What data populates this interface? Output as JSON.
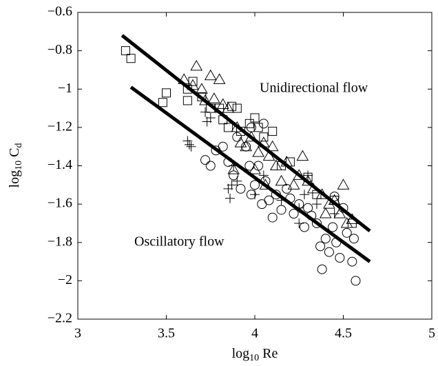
{
  "chart_data": {
    "type": "scatter",
    "x_label": {
      "base": "log",
      "sub": "10",
      "rest": "Re"
    },
    "y_label": {
      "base": "log",
      "sub": "10",
      "rest": "C",
      "rest_sub": "d"
    },
    "annotations": [
      "Unidirectional flow",
      "Oscillatory flow"
    ],
    "xlim": [
      3,
      5
    ],
    "ylim": [
      -2.2,
      -0.6
    ],
    "xticks": [
      3,
      3.5,
      4,
      4.5,
      5
    ],
    "yticks": [
      {
        "value": -0.6,
        "label": "−0.6"
      },
      {
        "value": -0.8,
        "label": "−0.8"
      },
      {
        "value": -1,
        "label": "−1"
      },
      {
        "value": -1.2,
        "label": "−1.2"
      },
      {
        "value": -1.4,
        "label": "−1.4"
      },
      {
        "value": -1.6,
        "label": "−1.6"
      },
      {
        "value": -1.8,
        "label": "−1.8"
      },
      {
        "value": -2,
        "label": "−2"
      },
      {
        "value": -2.2,
        "label": "−2.2"
      }
    ],
    "series": [
      {
        "marker": "square",
        "color": "#000000",
        "x": [
          3.27,
          3.3,
          3.48,
          3.5,
          3.62,
          3.62,
          3.65,
          3.7,
          3.75,
          3.8,
          3.82,
          3.85,
          3.87,
          3.9,
          3.92,
          3.97,
          4.0,
          4.02,
          4.05,
          4.1,
          4.15,
          4.2,
          4.3,
          4.35,
          4.45,
          4.55
        ],
        "values": [
          -0.8,
          -0.84,
          -1.07,
          -1.02,
          -1.0,
          -1.06,
          -0.96,
          -1.04,
          -1.1,
          -1.1,
          -1.16,
          -1.2,
          -1.09,
          -1.1,
          -1.22,
          -1.18,
          -1.15,
          -1.2,
          -1.25,
          -1.22,
          -1.4,
          -1.38,
          -1.46,
          -1.55,
          -1.58,
          -1.7
        ]
      },
      {
        "marker": "triangle",
        "color": "#000000",
        "x": [
          3.6,
          3.65,
          3.67,
          3.7,
          3.72,
          3.75,
          3.77,
          3.8,
          3.82,
          3.85,
          3.9,
          3.92,
          3.95,
          3.98,
          4.02,
          4.05,
          4.08,
          4.1,
          4.12,
          4.18,
          4.22,
          4.25,
          4.27,
          4.3,
          4.33,
          4.38,
          4.42,
          4.45,
          4.48,
          4.5,
          4.52,
          4.55,
          4.4,
          3.88,
          4.0,
          4.06,
          4.15
        ],
        "values": [
          -0.95,
          -0.98,
          -0.88,
          -1.0,
          -1.06,
          -0.93,
          -1.05,
          -0.95,
          -1.08,
          -1.1,
          -1.2,
          -1.28,
          -1.3,
          -1.25,
          -1.33,
          -1.28,
          -1.35,
          -1.3,
          -1.4,
          -1.38,
          -1.5,
          -1.45,
          -1.35,
          -1.48,
          -1.52,
          -1.55,
          -1.6,
          -1.58,
          -1.65,
          -1.5,
          -1.7,
          -1.68,
          -1.65,
          -1.42,
          -1.42,
          -1.5,
          -1.48
        ]
      },
      {
        "marker": "circle",
        "color": "#000000",
        "x": [
          3.72,
          3.75,
          3.78,
          3.82,
          3.85,
          3.88,
          3.9,
          3.92,
          3.95,
          3.97,
          3.98,
          4.0,
          4.02,
          4.04,
          4.06,
          4.08,
          4.1,
          4.12,
          4.15,
          4.18,
          4.2,
          4.22,
          4.25,
          4.28,
          4.3,
          4.32,
          4.35,
          4.37,
          4.38,
          4.4,
          4.42,
          4.44,
          4.46,
          4.48,
          4.5,
          4.52,
          4.55,
          4.57,
          4.56,
          3.98,
          4.05,
          4.45
        ],
        "values": [
          -1.37,
          -1.4,
          -1.32,
          -1.3,
          -1.38,
          -1.45,
          -1.25,
          -1.52,
          -1.3,
          -1.4,
          -1.55,
          -1.5,
          -1.4,
          -1.6,
          -1.48,
          -1.58,
          -1.67,
          -1.55,
          -1.63,
          -1.52,
          -1.57,
          -1.65,
          -1.6,
          -1.72,
          -1.62,
          -1.66,
          -1.7,
          -1.82,
          -1.94,
          -1.78,
          -1.85,
          -1.72,
          -1.8,
          -1.88,
          -1.62,
          -1.75,
          -1.9,
          -2.0,
          -1.78,
          -1.2,
          -1.18,
          -1.56
        ]
      },
      {
        "marker": "plus",
        "color": "#000000",
        "x": [
          3.62,
          3.63,
          3.64,
          3.72,
          3.73,
          3.75,
          3.85,
          3.86,
          3.87,
          3.88,
          3.9,
          4.0,
          4.05,
          4.15,
          4.25,
          4.25,
          4.28,
          4.3,
          4.35,
          4.45
        ],
        "values": [
          -1.27,
          -1.29,
          -1.3,
          -1.12,
          -1.17,
          -1.15,
          -1.52,
          -1.57,
          -1.5,
          -1.4,
          -1.48,
          -1.55,
          -1.45,
          -1.58,
          -1.62,
          -1.7,
          -1.55,
          -1.45,
          -1.6,
          -1.65
        ]
      },
      {
        "marker": "line",
        "color": "#000000",
        "x": [
          3.25,
          4.65
        ],
        "values": [
          -0.72,
          -1.74
        ]
      },
      {
        "marker": "line",
        "color": "#000000",
        "x": [
          3.3,
          4.65
        ],
        "values": [
          -0.99,
          -1.9
        ]
      }
    ]
  }
}
